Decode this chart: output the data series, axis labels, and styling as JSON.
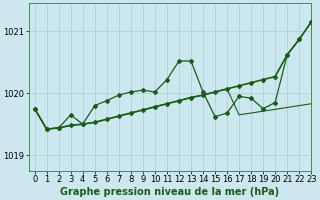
{
  "title": "Graphe pression niveau de la mer (hPa)",
  "background_color": "#cce8ee",
  "plot_bg_color": "#cce8ee",
  "grid_color": "#aacdd5",
  "line_color": "#1a5c1a",
  "xlim": [
    -0.5,
    23
  ],
  "ylim": [
    1018.75,
    1021.45
  ],
  "yticks": [
    1019,
    1020,
    1021
  ],
  "xticks": [
    0,
    1,
    2,
    3,
    4,
    5,
    6,
    7,
    8,
    9,
    10,
    11,
    12,
    13,
    14,
    15,
    16,
    17,
    18,
    19,
    20,
    21,
    22,
    23
  ],
  "series_flat": [
    1019.75,
    1019.42,
    1019.44,
    1019.48,
    1019.5,
    1019.53,
    1019.58,
    1019.63,
    1019.68,
    1019.73,
    1019.78,
    1019.83,
    1019.88,
    1019.93,
    1019.97,
    1020.02,
    1020.07,
    1019.65,
    1019.68,
    1019.71,
    1019.74,
    1019.77,
    1019.8,
    1019.83
  ],
  "series_diag": [
    1019.75,
    1019.42,
    1019.44,
    1019.48,
    1019.5,
    1019.53,
    1019.58,
    1019.63,
    1019.68,
    1019.73,
    1019.78,
    1019.83,
    1019.88,
    1019.93,
    1019.97,
    1020.02,
    1020.07,
    1020.12,
    1020.17,
    1020.22,
    1020.27,
    1020.62,
    1020.87,
    1021.15
  ],
  "series_main": [
    1019.75,
    1019.42,
    1019.44,
    1019.65,
    1019.5,
    1019.8,
    1019.88,
    1019.97,
    1020.02,
    1020.05,
    1020.02,
    1020.22,
    1020.52,
    1020.52,
    1020.02,
    1019.62,
    1019.68,
    1019.95,
    1019.92,
    1019.75,
    1019.85,
    1020.62,
    1020.87,
    1021.15
  ],
  "xlabel_fontsize": 7.0,
  "tick_fontsize": 6.0
}
